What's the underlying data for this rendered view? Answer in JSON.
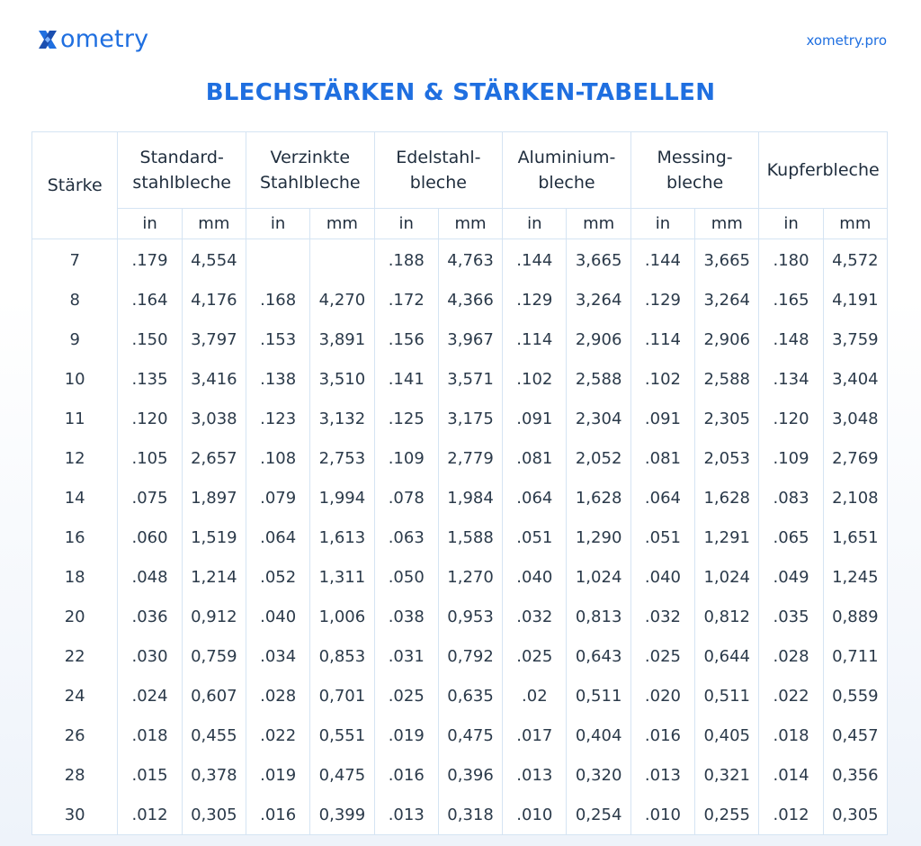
{
  "header": {
    "logo_x": "X",
    "logo_text": "ometry",
    "site_link": "xometry.pro"
  },
  "title": "BLECHSTÄRKEN & STÄRKEN-TABELLEN",
  "table": {
    "gauge_header": "Stärke",
    "groups": [
      {
        "line1": "Standard-",
        "line2": "stahlbleche"
      },
      {
        "line1": "Verzinkte",
        "line2": "Stahlbleche"
      },
      {
        "line1": "Edelstahl-",
        "line2": "bleche"
      },
      {
        "line1": "Aluminium-",
        "line2": "bleche"
      },
      {
        "line1": "Messing-",
        "line2": "bleche"
      },
      {
        "line1": "Kupferbleche",
        "line2": ""
      }
    ],
    "unit_in": "in",
    "unit_mm": "mm",
    "rows": [
      [
        "7",
        ".179",
        "4,554",
        "",
        "",
        ".188",
        "4,763",
        ".144",
        "3,665",
        ".144",
        "3,665",
        ".180",
        "4,572"
      ],
      [
        "8",
        ".164",
        "4,176",
        ".168",
        "4,270",
        ".172",
        "4,366",
        ".129",
        "3,264",
        ".129",
        "3,264",
        ".165",
        "4,191"
      ],
      [
        "9",
        ".150",
        "3,797",
        ".153",
        "3,891",
        ".156",
        "3,967",
        ".114",
        "2,906",
        ".114",
        "2,906",
        ".148",
        "3,759"
      ],
      [
        "10",
        ".135",
        "3,416",
        ".138",
        "3,510",
        ".141",
        "3,571",
        ".102",
        "2,588",
        ".102",
        "2,588",
        ".134",
        "3,404"
      ],
      [
        "11",
        ".120",
        "3,038",
        ".123",
        "3,132",
        ".125",
        "3,175",
        ".091",
        "2,304",
        ".091",
        "2,305",
        ".120",
        "3,048"
      ],
      [
        "12",
        ".105",
        "2,657",
        ".108",
        "2,753",
        ".109",
        "2,779",
        ".081",
        "2,052",
        ".081",
        "2,053",
        ".109",
        "2,769"
      ],
      [
        "14",
        ".075",
        "1,897",
        ".079",
        "1,994",
        ".078",
        "1,984",
        ".064",
        "1,628",
        ".064",
        "1,628",
        ".083",
        "2,108"
      ],
      [
        "16",
        ".060",
        "1,519",
        ".064",
        "1,613",
        ".063",
        "1,588",
        ".051",
        "1,290",
        ".051",
        "1,291",
        ".065",
        "1,651"
      ],
      [
        "18",
        ".048",
        "1,214",
        ".052",
        "1,311",
        ".050",
        "1,270",
        ".040",
        "1,024",
        ".040",
        "1,024",
        ".049",
        "1,245"
      ],
      [
        "20",
        ".036",
        "0,912",
        ".040",
        "1,006",
        ".038",
        "0,953",
        ".032",
        "0,813",
        ".032",
        "0,812",
        ".035",
        "0,889"
      ],
      [
        "22",
        ".030",
        "0,759",
        ".034",
        "0,853",
        ".031",
        "0,792",
        ".025",
        "0,643",
        ".025",
        "0,644",
        ".028",
        "0,711"
      ],
      [
        "24",
        ".024",
        "0,607",
        ".028",
        "0,701",
        ".025",
        "0,635",
        ".02",
        "0,511",
        ".020",
        "0,511",
        ".022",
        "0,559"
      ],
      [
        "26",
        ".018",
        "0,455",
        ".022",
        "0,551",
        ".019",
        "0,475",
        ".017",
        "0,404",
        ".016",
        "0,405",
        ".018",
        "0,457"
      ],
      [
        "28",
        ".015",
        "0,378",
        ".019",
        "0,475",
        ".016",
        "0,396",
        ".013",
        "0,320",
        ".013",
        "0,321",
        ".014",
        "0,356"
      ],
      [
        "30",
        ".012",
        "0,305",
        ".016",
        "0,399",
        ".013",
        "0,318",
        ".010",
        "0,254",
        ".010",
        "0,255",
        ".012",
        "0,305"
      ]
    ]
  },
  "colors": {
    "brand_blue": "#1f6fe0",
    "border": "#d5e4f3",
    "text": "#2b3a4a"
  }
}
